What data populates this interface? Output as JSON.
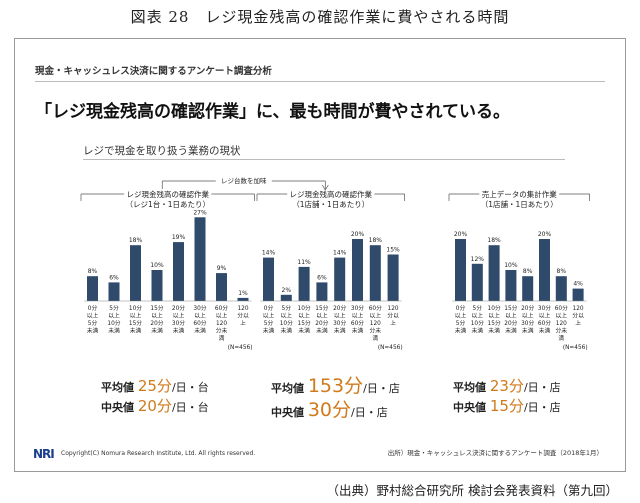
{
  "figure_title": "図表 28　レジ現金残高の確認作業に費やされる時間",
  "report_label": "現金・キャッシュレス決済に関するアンケート調査分析",
  "headline": "「レジ現金残高の確認作業」に、最も時間が費やされている。",
  "section_title": "レジで現金を取り扱う業務の現状",
  "bracket_label": "レジ台数を加味",
  "colors": {
    "bar": "#2f4a6b",
    "accent": "#d07a1c"
  },
  "chart_data": [
    {
      "type": "bar",
      "title": "レジ現金残高の確認作業",
      "subtitle": "（レジ1台・1日あたり）",
      "categories": [
        "0分以上5分未満",
        "5分以上10分未満",
        "10分以上15分未満",
        "15分以上20分未満",
        "20分以上30分未満",
        "30分以上60分未満",
        "60分以上120分未満",
        "120分以上"
      ],
      "tick_labels": [
        [
          "0分",
          "以上",
          "5分",
          "未満"
        ],
        [
          "5分",
          "以上",
          "10分",
          "未満"
        ],
        [
          "10分",
          "以上",
          "15分",
          "未満"
        ],
        [
          "15分",
          "以上",
          "20分",
          "未満"
        ],
        [
          "20分",
          "以上",
          "30分",
          "未満"
        ],
        [
          "30分",
          "以上",
          "60分",
          "未満"
        ],
        [
          "60分",
          "以上",
          "120",
          "分未",
          "満"
        ],
        [
          "120",
          "分以",
          "上"
        ]
      ],
      "values": [
        8,
        6,
        18,
        10,
        19,
        27,
        9,
        1
      ],
      "data_labels": [
        "8%",
        "6%",
        "18%",
        "10%",
        "19%",
        "27%",
        "9%",
        "1%"
      ],
      "n_label": "(N=456)",
      "ylim": [
        0,
        30
      ]
    },
    {
      "type": "bar",
      "title": "レジ現金残高の確認作業",
      "subtitle": "（1店舗・1日あたり）",
      "categories": [
        "0分以上5分未満",
        "5分以上10分未満",
        "10分以上15分未満",
        "15分以上20分未満",
        "20分以上30分未満",
        "30分以上60分未満",
        "60分以上120分未満",
        "120分以上"
      ],
      "tick_labels": [
        [
          "0分",
          "以上",
          "5分",
          "未満"
        ],
        [
          "5分",
          "以上",
          "10分",
          "未満"
        ],
        [
          "10分",
          "以上",
          "15分",
          "未満"
        ],
        [
          "15分",
          "以上",
          "20分",
          "未満"
        ],
        [
          "20分",
          "以上",
          "30分",
          "未満"
        ],
        [
          "30分",
          "以上",
          "60分",
          "未満"
        ],
        [
          "60分",
          "以上",
          "120",
          "分未",
          "満"
        ],
        [
          "120",
          "分以",
          "上"
        ]
      ],
      "values": [
        14,
        2,
        11,
        6,
        14,
        20,
        18,
        15
      ],
      "data_labels": [
        "14%",
        "2%",
        "11%",
        "6%",
        "14%",
        "20%",
        "18%",
        "15%"
      ],
      "n_label": "(N=456)",
      "ylim": [
        0,
        30
      ]
    },
    {
      "type": "bar",
      "title": "売上データの集計作業",
      "subtitle": "（1店舗・1日あたり）",
      "categories": [
        "0分以上5分未満",
        "5分以上10分未満",
        "10分以上15分未満",
        "15分以上20分未満",
        "20分以上30分未満",
        "30分以上60分未満",
        "60分以上120分未満",
        "120分以上"
      ],
      "tick_labels": [
        [
          "0分",
          "以上",
          "5分",
          "未満"
        ],
        [
          "5分",
          "以上",
          "10分",
          "未満"
        ],
        [
          "10分",
          "以上",
          "15分",
          "未満"
        ],
        [
          "15分",
          "以上",
          "20分",
          "未満"
        ],
        [
          "20分",
          "以上",
          "30分",
          "未満"
        ],
        [
          "30分",
          "以上",
          "60分",
          "未満"
        ],
        [
          "60分",
          "以上",
          "120",
          "分未",
          "満"
        ],
        [
          "120",
          "分以",
          "上"
        ]
      ],
      "values": [
        20,
        12,
        18,
        10,
        8,
        20,
        8,
        4
      ],
      "data_labels": [
        "20%",
        "12%",
        "18%",
        "10%",
        "8%",
        "20%",
        "8%",
        "4%"
      ],
      "n_label": "(N=456)",
      "ylim": [
        0,
        30
      ]
    }
  ],
  "stats": [
    {
      "avg_label": "平均値",
      "avg_value": "25分",
      "avg_unit": "/日・台",
      "med_label": "中央値",
      "med_value": "20分",
      "med_unit": "/日・台"
    },
    {
      "avg_label": "平均値",
      "avg_value": "153分",
      "avg_unit": "/日・店",
      "med_label": "中央値",
      "med_value": "30分",
      "med_unit": "/日・店"
    },
    {
      "avg_label": "平均値",
      "avg_value": "23分",
      "avg_unit": "/日・店",
      "med_label": "中央値",
      "med_value": "15分",
      "med_unit": "/日・店"
    }
  ],
  "logo": "NRI",
  "copyright": "Copyright(C) Nomura Research Institute, Ltd. All rights reserved.",
  "source": "出所）現金・キャッシュレス決済に関するアンケート調査（2018年1月）",
  "footer": "（出典）野村総合研究所 検討会発表資料（第九回）"
}
